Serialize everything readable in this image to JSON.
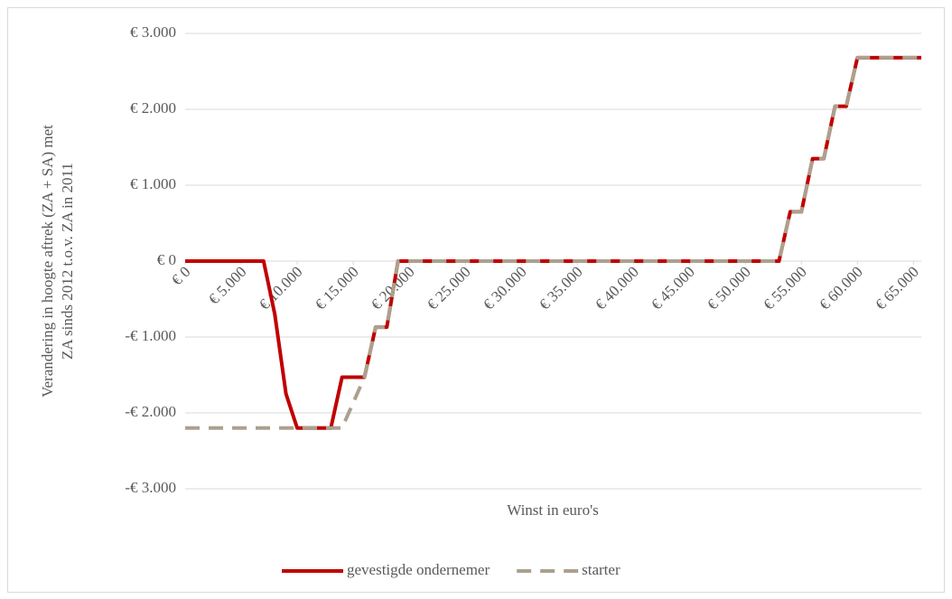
{
  "chart_data": {
    "type": "line",
    "ylabel": [
      "Verandering in hoogte aftrek  (ZA + SA) met",
      "ZA sinds 2012 t.o.v. ZA in 2011"
    ],
    "xlabel": "Winst in euro's",
    "x": [
      0,
      7000,
      8000,
      9000,
      10000,
      13000,
      14000,
      16000,
      17000,
      18000,
      19000,
      53000,
      54000,
      55000,
      56000,
      57000,
      58000,
      59000,
      60000,
      65700
    ],
    "series": [
      {
        "name": "gevestigde ondernemer",
        "color": "#c00000",
        "dash": false,
        "values": [
          0,
          0,
          -700,
          -1750,
          -2200,
          -2200,
          -1530,
          -1530,
          -870,
          -870,
          0,
          0,
          650,
          650,
          1350,
          1350,
          2040,
          2040,
          2680,
          2680
        ]
      },
      {
        "name": "starter",
        "color": "#aca08e",
        "dash": true,
        "values": [
          -2200,
          -2200,
          -2200,
          -2200,
          -2200,
          -2200,
          -2200,
          -1530,
          -870,
          -870,
          0,
          0,
          650,
          650,
          1350,
          1350,
          2040,
          2040,
          2680,
          2680
        ]
      }
    ],
    "xlim": [
      0,
      65700
    ],
    "ylim": [
      -3000,
      3000
    ],
    "xticks": [
      {
        "value": 0,
        "label": "€ 0"
      },
      {
        "value": 5000,
        "label": "€ 5.000"
      },
      {
        "value": 10000,
        "label": "€ 10.000"
      },
      {
        "value": 15000,
        "label": "€ 15.000"
      },
      {
        "value": 20000,
        "label": "€ 20.000"
      },
      {
        "value": 25000,
        "label": "€ 25.000"
      },
      {
        "value": 30000,
        "label": "€ 30.000"
      },
      {
        "value": 35000,
        "label": "€ 35.000"
      },
      {
        "value": 40000,
        "label": "€ 40.000"
      },
      {
        "value": 45000,
        "label": "€ 45.000"
      },
      {
        "value": 50000,
        "label": "€ 50.000"
      },
      {
        "value": 55000,
        "label": "€ 55.000"
      },
      {
        "value": 60000,
        "label": "€ 60.000"
      },
      {
        "value": 65000,
        "label": "€ 65.000"
      }
    ],
    "yticks": [
      {
        "value": 3000,
        "label": "€ 3.000"
      },
      {
        "value": 2000,
        "label": "€ 2.000"
      },
      {
        "value": 1000,
        "label": "€ 1.000"
      },
      {
        "value": 0,
        "label": "€ 0"
      },
      {
        "value": -1000,
        "label": "-€ 1.000"
      },
      {
        "value": -2000,
        "label": "-€ 2.000"
      },
      {
        "value": -3000,
        "label": "-€ 3.000"
      }
    ],
    "grid": true,
    "legend": "bottom"
  }
}
